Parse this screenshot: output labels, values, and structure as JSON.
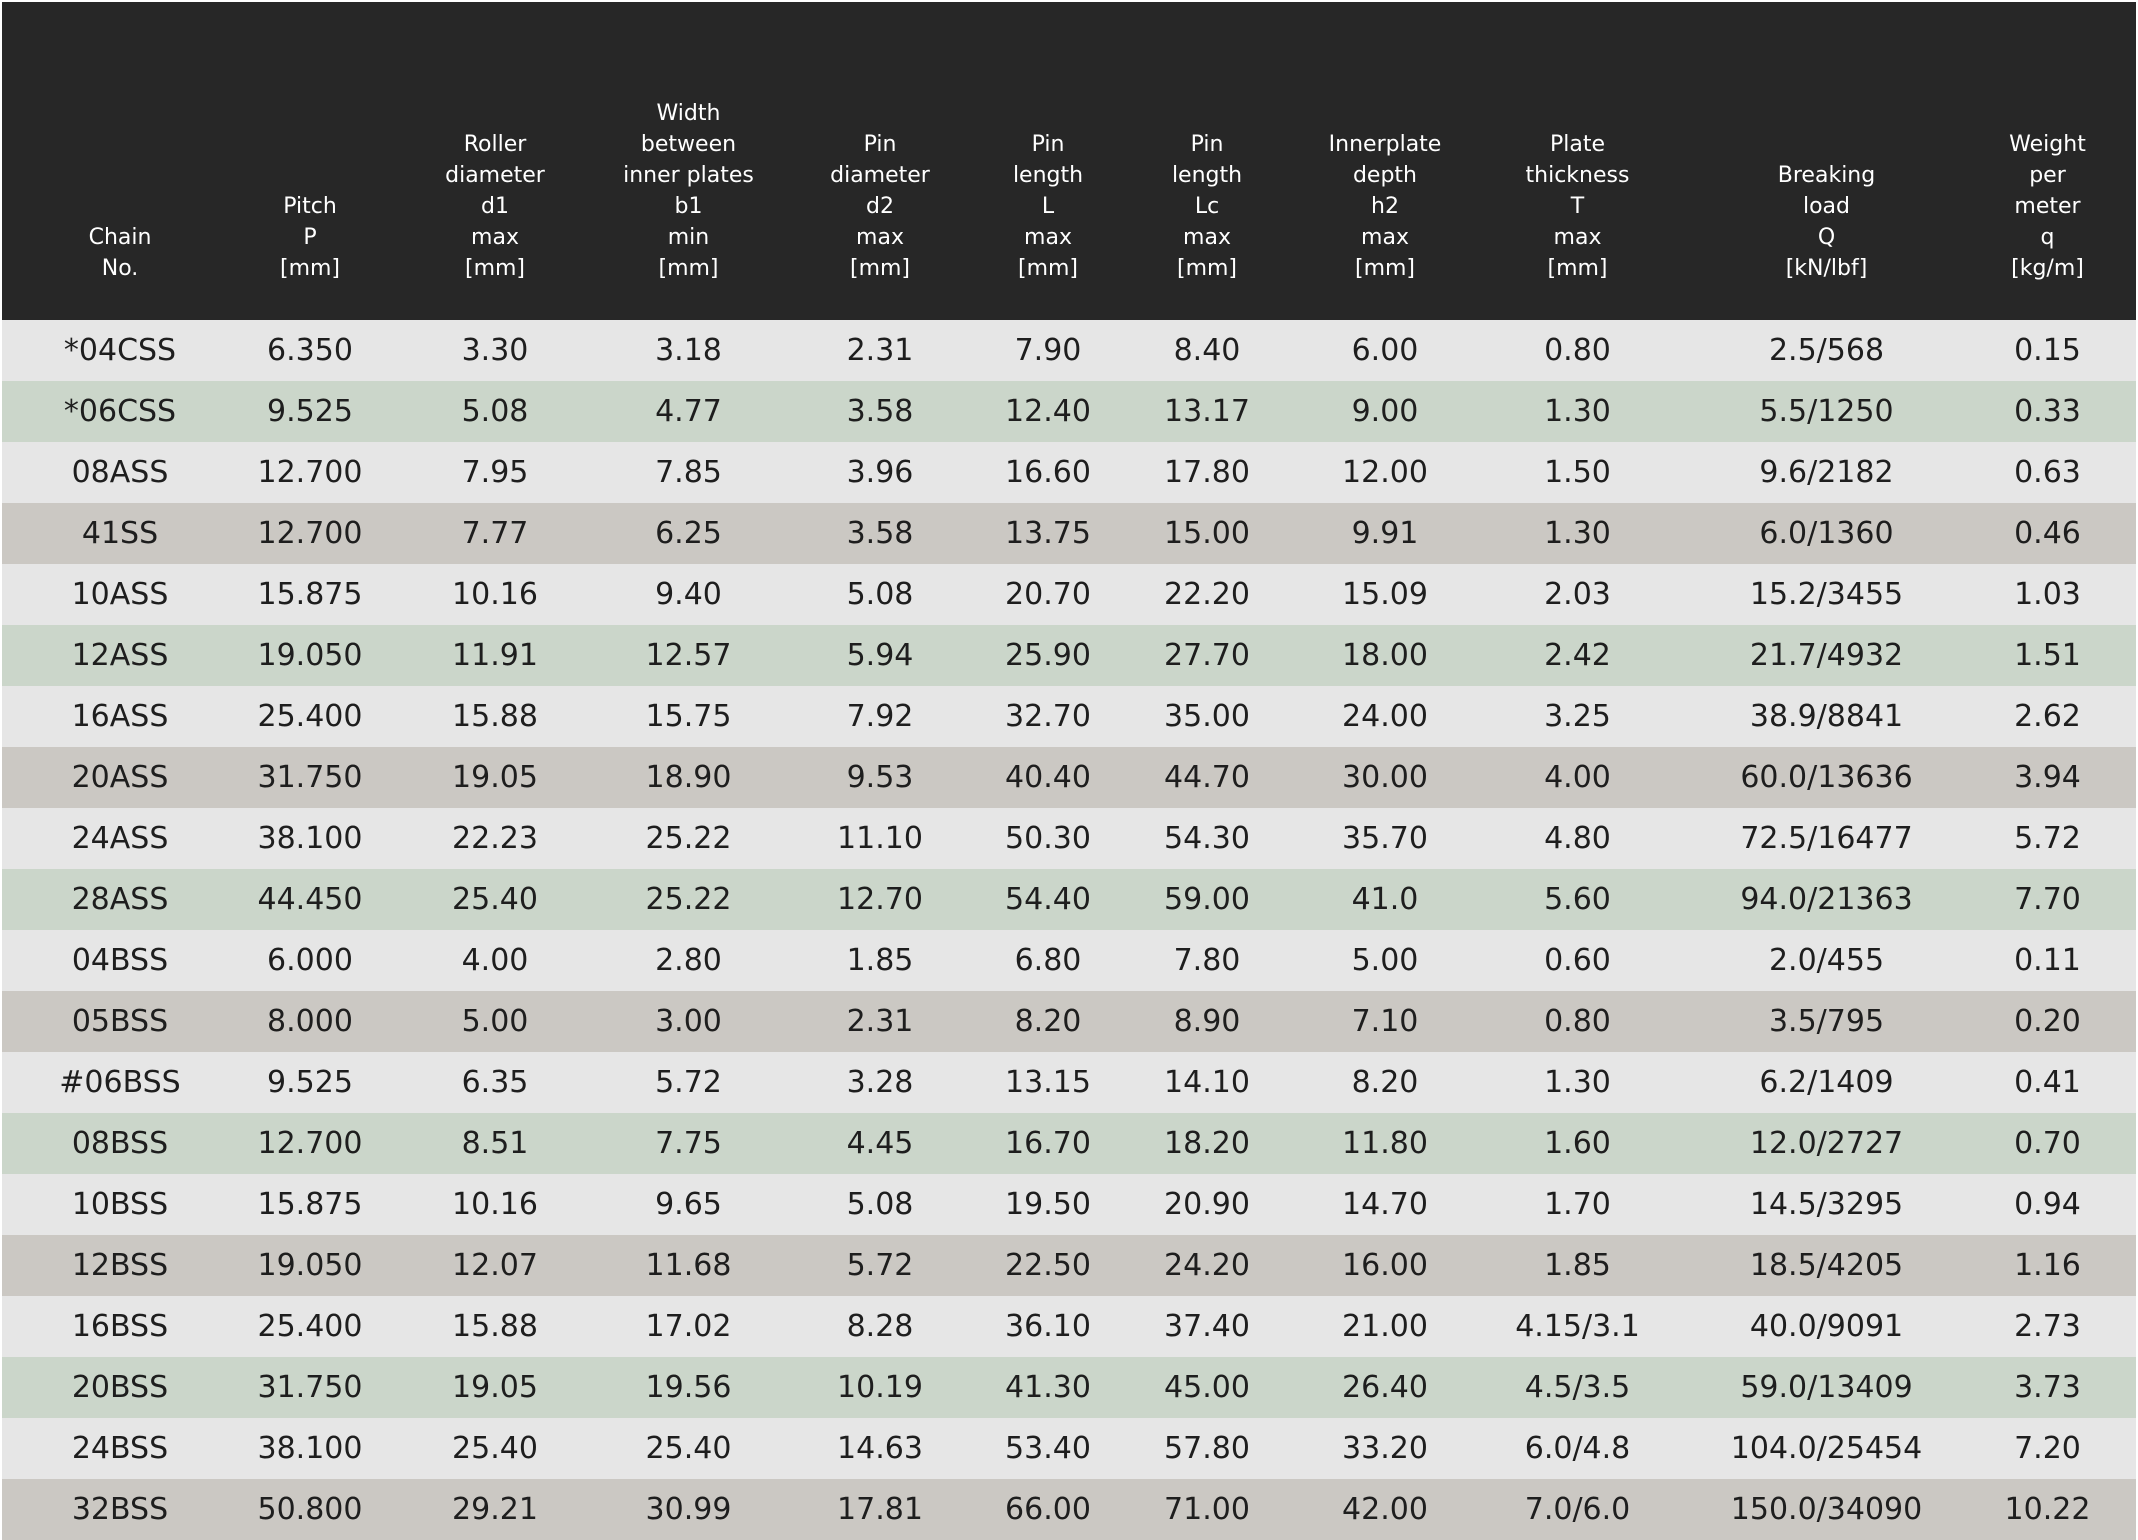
{
  "table": {
    "headers": [
      [
        "Chain",
        "No."
      ],
      [
        "Pitch",
        "P",
        "[mm]"
      ],
      [
        "Roller",
        "diameter",
        "d1",
        "max",
        "[mm]"
      ],
      [
        "Width",
        "between",
        "inner plates",
        "b1",
        "min",
        "[mm]"
      ],
      [
        "Pin",
        "diameter",
        "d2",
        "max",
        "[mm]"
      ],
      [
        "Pin",
        "length",
        "L",
        "max",
        "[mm]"
      ],
      [
        "Pin",
        "length",
        "Lc",
        "max",
        "[mm]"
      ],
      [
        "Innerplate",
        "depth",
        "h2",
        "max",
        "[mm]"
      ],
      [
        "Plate",
        "thickness",
        "T",
        "max",
        "[mm]"
      ],
      [
        "Breaking",
        "load",
        "Q",
        "[kN/lbf]"
      ],
      [
        "Weight",
        "per",
        "meter",
        "q",
        "[kg/m]"
      ]
    ],
    "rows": [
      {
        "shade": "light",
        "cells": [
          "*04CSS",
          "6.350",
          "3.30",
          "3.18",
          "2.31",
          "7.90",
          "8.40",
          "6.00",
          "0.80",
          "2.5/568",
          "0.15"
        ]
      },
      {
        "shade": "green",
        "cells": [
          "*06CSS",
          "9.525",
          "5.08",
          "4.77",
          "3.58",
          "12.40",
          "13.17",
          "9.00",
          "1.30",
          "5.5/1250",
          "0.33"
        ]
      },
      {
        "shade": "light",
        "cells": [
          "08ASS",
          "12.700",
          "7.95",
          "7.85",
          "3.96",
          "16.60",
          "17.80",
          "12.00",
          "1.50",
          "9.6/2182",
          "0.63"
        ]
      },
      {
        "shade": "taupe",
        "cells": [
          "41SS",
          "12.700",
          "7.77",
          "6.25",
          "3.58",
          "13.75",
          "15.00",
          "9.91",
          "1.30",
          "6.0/1360",
          "0.46"
        ]
      },
      {
        "shade": "light",
        "cells": [
          "10ASS",
          "15.875",
          "10.16",
          "9.40",
          "5.08",
          "20.70",
          "22.20",
          "15.09",
          "2.03",
          "15.2/3455",
          "1.03"
        ]
      },
      {
        "shade": "green",
        "cells": [
          "12ASS",
          "19.050",
          "11.91",
          "12.57",
          "5.94",
          "25.90",
          "27.70",
          "18.00",
          "2.42",
          "21.7/4932",
          "1.51"
        ]
      },
      {
        "shade": "light",
        "cells": [
          "16ASS",
          "25.400",
          "15.88",
          "15.75",
          "7.92",
          "32.70",
          "35.00",
          "24.00",
          "3.25",
          "38.9/8841",
          "2.62"
        ]
      },
      {
        "shade": "taupe",
        "cells": [
          "20ASS",
          "31.750",
          "19.05",
          "18.90",
          "9.53",
          "40.40",
          "44.70",
          "30.00",
          "4.00",
          "60.0/13636",
          "3.94"
        ]
      },
      {
        "shade": "light",
        "cells": [
          "24ASS",
          "38.100",
          "22.23",
          "25.22",
          "11.10",
          "50.30",
          "54.30",
          "35.70",
          "4.80",
          "72.5/16477",
          "5.72"
        ]
      },
      {
        "shade": "green",
        "cells": [
          "28ASS",
          "44.450",
          "25.40",
          "25.22",
          "12.70",
          "54.40",
          "59.00",
          "41.0",
          "5.60",
          "94.0/21363",
          "7.70"
        ]
      },
      {
        "shade": "light",
        "cells": [
          "04BSS",
          "6.000",
          "4.00",
          "2.80",
          "1.85",
          "6.80",
          "7.80",
          "5.00",
          "0.60",
          "2.0/455",
          "0.11"
        ]
      },
      {
        "shade": "taupe",
        "cells": [
          "05BSS",
          "8.000",
          "5.00",
          "3.00",
          "2.31",
          "8.20",
          "8.90",
          "7.10",
          "0.80",
          "3.5/795",
          "0.20"
        ]
      },
      {
        "shade": "light",
        "cells": [
          "#06BSS",
          "9.525",
          "6.35",
          "5.72",
          "3.28",
          "13.15",
          "14.10",
          "8.20",
          "1.30",
          "6.2/1409",
          "0.41"
        ]
      },
      {
        "shade": "green",
        "cells": [
          "08BSS",
          "12.700",
          "8.51",
          "7.75",
          "4.45",
          "16.70",
          "18.20",
          "11.80",
          "1.60",
          "12.0/2727",
          "0.70"
        ]
      },
      {
        "shade": "light",
        "cells": [
          "10BSS",
          "15.875",
          "10.16",
          "9.65",
          "5.08",
          "19.50",
          "20.90",
          "14.70",
          "1.70",
          "14.5/3295",
          "0.94"
        ]
      },
      {
        "shade": "taupe",
        "cells": [
          "12BSS",
          "19.050",
          "12.07",
          "11.68",
          "5.72",
          "22.50",
          "24.20",
          "16.00",
          "1.85",
          "18.5/4205",
          "1.16"
        ]
      },
      {
        "shade": "light",
        "cells": [
          "16BSS",
          "25.400",
          "15.88",
          "17.02",
          "8.28",
          "36.10",
          "37.40",
          "21.00",
          "4.15/3.1",
          "40.0/9091",
          "2.73"
        ]
      },
      {
        "shade": "green",
        "cells": [
          "20BSS",
          "31.750",
          "19.05",
          "19.56",
          "10.19",
          "41.30",
          "45.00",
          "26.40",
          "4.5/3.5",
          "59.0/13409",
          "3.73"
        ]
      },
      {
        "shade": "light",
        "cells": [
          "24BSS",
          "38.100",
          "25.40",
          "25.40",
          "14.63",
          "53.40",
          "57.80",
          "33.20",
          "6.0/4.8",
          "104.0/25454",
          "7.20"
        ]
      },
      {
        "shade": "taupe",
        "cells": [
          "32BSS",
          "50.800",
          "29.21",
          "30.99",
          "17.81",
          "66.00",
          "71.00",
          "42.00",
          "7.0/6.0",
          "150.0/34090",
          "10.22"
        ]
      }
    ]
  },
  "colors": {
    "header_bg": "#272727",
    "header_text": "#ffffff",
    "row_light": "#e6e6e6",
    "row_green": "#cbd6ca",
    "row_taupe": "#cbc8c3",
    "cell_text": "#1e1e1e"
  }
}
